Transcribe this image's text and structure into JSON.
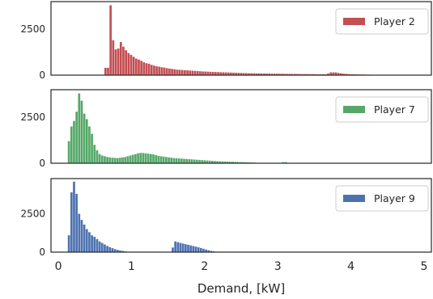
{
  "chart_data": [
    {
      "type": "bar",
      "series": [
        {
          "name": "Player 2",
          "color": "#c44e52"
        }
      ],
      "bin_width": 0.035,
      "x": [
        0.63,
        0.665,
        0.7,
        0.735,
        0.77,
        0.805,
        0.84,
        0.875,
        0.91,
        0.945,
        0.98,
        1.015,
        1.05,
        1.085,
        1.12,
        1.155,
        1.19,
        1.225,
        1.26,
        1.295,
        1.33,
        1.365,
        1.4,
        1.435,
        1.47,
        1.505,
        1.54,
        1.575,
        1.61,
        1.645,
        1.68,
        1.715,
        1.75,
        1.785,
        1.82,
        1.855,
        1.89,
        1.925,
        1.96,
        1.995,
        2.03,
        2.065,
        2.1,
        2.135,
        2.17,
        2.205,
        2.24,
        2.275,
        2.31,
        2.345,
        2.38,
        2.415,
        2.45,
        2.485,
        2.52,
        2.555,
        2.59,
        2.625,
        2.66,
        2.695,
        2.73,
        2.765,
        2.8,
        2.835,
        2.87,
        2.905,
        2.94,
        2.975,
        3.01,
        3.045,
        3.08,
        3.115,
        3.15,
        3.185,
        3.22,
        3.255,
        3.29,
        3.325,
        3.36,
        3.395,
        3.43,
        3.465,
        3.5,
        3.535,
        3.57,
        3.605,
        3.64,
        3.675,
        3.71,
        3.745,
        3.78,
        3.815,
        3.85,
        3.885,
        3.92,
        3.955,
        3.99,
        4.025,
        4.06,
        4.095,
        4.13,
        4.165,
        4.2,
        4.235,
        4.27
      ],
      "values": [
        400,
        400,
        3800,
        1900,
        1400,
        1450,
        1800,
        1550,
        1350,
        1200,
        1100,
        1000,
        900,
        850,
        780,
        700,
        650,
        620,
        560,
        520,
        480,
        460,
        430,
        410,
        380,
        360,
        340,
        320,
        300,
        290,
        280,
        270,
        260,
        250,
        240,
        230,
        220,
        210,
        200,
        195,
        190,
        180,
        175,
        170,
        165,
        160,
        155,
        150,
        145,
        140,
        135,
        130,
        125,
        120,
        115,
        110,
        105,
        100,
        100,
        95,
        95,
        90,
        90,
        85,
        85,
        80,
        80,
        80,
        75,
        75,
        70,
        70,
        70,
        65,
        65,
        65,
        60,
        60,
        60,
        55,
        55,
        55,
        50,
        50,
        50,
        50,
        50,
        90,
        150,
        150,
        150,
        120,
        100,
        80,
        70,
        60,
        50,
        50,
        40,
        40,
        35,
        35,
        30,
        25,
        25
      ],
      "yticks": [
        0,
        2500
      ],
      "ylim": [
        0,
        4000
      ],
      "xlim": [
        -0.1,
        5.1
      ]
    },
    {
      "type": "bar",
      "series": [
        {
          "name": "Player 7",
          "color": "#55a868"
        }
      ],
      "bin_width": 0.035,
      "x": [
        0.13,
        0.165,
        0.2,
        0.235,
        0.27,
        0.305,
        0.34,
        0.375,
        0.41,
        0.445,
        0.48,
        0.515,
        0.55,
        0.585,
        0.62,
        0.655,
        0.69,
        0.725,
        0.76,
        0.795,
        0.83,
        0.865,
        0.9,
        0.935,
        0.97,
        1.005,
        1.04,
        1.075,
        1.11,
        1.145,
        1.18,
        1.215,
        1.25,
        1.285,
        1.32,
        1.355,
        1.39,
        1.425,
        1.46,
        1.495,
        1.53,
        1.565,
        1.6,
        1.635,
        1.67,
        1.705,
        1.74,
        1.775,
        1.81,
        1.845,
        1.88,
        1.915,
        1.95,
        1.985,
        2.02,
        2.055,
        2.09,
        2.125,
        2.16,
        2.195,
        2.23,
        2.265,
        2.3,
        2.335,
        2.37,
        2.405,
        2.44,
        2.475,
        2.51,
        2.545,
        2.58,
        2.615,
        2.66,
        3.06,
        3.095
      ],
      "values": [
        1200,
        2000,
        2300,
        2800,
        3800,
        3400,
        2700,
        2400,
        2000,
        1600,
        1000,
        700,
        500,
        420,
        380,
        340,
        320,
        300,
        290,
        280,
        300,
        320,
        340,
        380,
        420,
        460,
        500,
        540,
        560,
        560,
        540,
        520,
        500,
        480,
        440,
        400,
        380,
        360,
        340,
        320,
        300,
        280,
        270,
        260,
        250,
        240,
        230,
        220,
        210,
        200,
        190,
        180,
        170,
        160,
        150,
        140,
        130,
        120,
        110,
        105,
        100,
        95,
        90,
        85,
        80,
        75,
        70,
        65,
        60,
        55,
        50,
        45,
        40,
        60,
        60
      ],
      "yticks": [
        0,
        2500
      ],
      "ylim": [
        0,
        4000
      ],
      "xlim": [
        -0.1,
        5.1
      ]
    },
    {
      "type": "bar",
      "series": [
        {
          "name": "Player 9",
          "color": "#4c72b0"
        }
      ],
      "bin_width": 0.035,
      "x": [
        0.13,
        0.165,
        0.2,
        0.235,
        0.27,
        0.305,
        0.34,
        0.375,
        0.41,
        0.445,
        0.48,
        0.515,
        0.55,
        0.585,
        0.62,
        0.655,
        0.69,
        0.725,
        0.76,
        0.795,
        0.83,
        0.865,
        0.9,
        1.55,
        1.585,
        1.62,
        1.655,
        1.69,
        1.725,
        1.76,
        1.795,
        1.83,
        1.865,
        1.9,
        1.935,
        1.97,
        2.005,
        2.04,
        2.075,
        2.11
      ],
      "values": [
        1100,
        3900,
        4600,
        3800,
        2500,
        2100,
        1800,
        1500,
        1300,
        1100,
        1000,
        850,
        700,
        600,
        500,
        400,
        330,
        260,
        200,
        150,
        110,
        80,
        50,
        300,
        700,
        650,
        600,
        560,
        520,
        480,
        440,
        400,
        360,
        320,
        270,
        220,
        170,
        120,
        80,
        50
      ],
      "yticks": [
        0,
        2500
      ],
      "ylim": [
        0,
        4800
      ],
      "xlim": [
        -0.1,
        5.1
      ]
    }
  ],
  "shared_x": {
    "xlabel": "Demand, [kW]",
    "xticks": [
      0,
      1,
      2,
      3,
      4,
      5
    ]
  }
}
